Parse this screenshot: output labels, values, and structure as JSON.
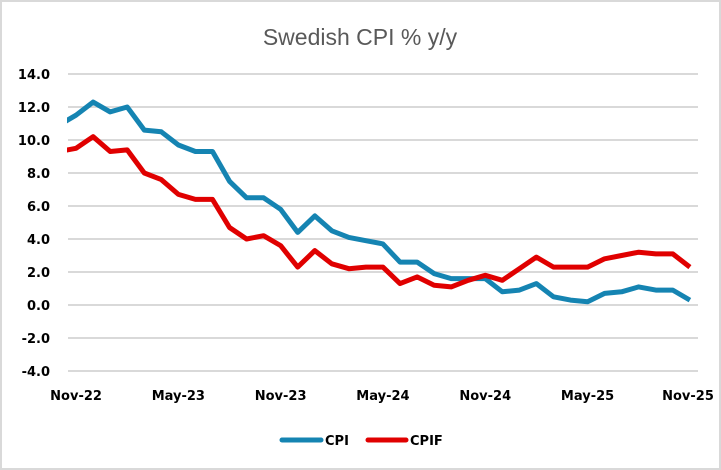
{
  "chart_data": {
    "type": "line",
    "title": "Swedish CPI % y/y",
    "xlabel": "",
    "ylabel": "",
    "ylim": [
      -4.0,
      14.0
    ],
    "yticks": [
      "14.0",
      "12.0",
      "10.0",
      "8.0",
      "6.0",
      "4.0",
      "2.0",
      "0.0",
      "-2.0",
      "-4.0"
    ],
    "ytick_values": [
      14,
      12,
      10,
      8,
      6,
      4,
      2,
      0,
      -2,
      -4
    ],
    "xtick_labels": [
      "Nov-22",
      "May-23",
      "Nov-23",
      "May-24",
      "Nov-24",
      "May-25",
      "Nov-25"
    ],
    "xtick_indices": [
      1,
      7,
      13,
      19,
      25,
      31,
      37
    ],
    "grid": true,
    "legend_position": "bottom",
    "x": [
      "Oct-22",
      "Nov-22",
      "Dec-22",
      "Jan-23",
      "Feb-23",
      "Mar-23",
      "Apr-23",
      "May-23",
      "Jun-23",
      "Jul-23",
      "Aug-23",
      "Sep-23",
      "Oct-23",
      "Nov-23",
      "Dec-23",
      "Jan-24",
      "Feb-24",
      "Mar-24",
      "Apr-24",
      "May-24",
      "Jun-24",
      "Jul-24",
      "Aug-24",
      "Sep-24",
      "Oct-24",
      "Nov-24",
      "Dec-24",
      "Jan-25",
      "Feb-25",
      "Mar-25",
      "Apr-25",
      "May-25",
      "Jun-25",
      "Jul-25",
      "Aug-25",
      "Sep-25",
      "Oct-25",
      "Nov-25"
    ],
    "series": [
      {
        "name": "CPI",
        "color": "#1584b2",
        "values": [
          10.9,
          11.5,
          12.3,
          11.7,
          12.0,
          10.6,
          10.5,
          9.7,
          9.3,
          9.3,
          7.5,
          6.5,
          6.5,
          5.8,
          4.4,
          5.4,
          4.5,
          4.1,
          3.9,
          3.7,
          2.6,
          2.6,
          1.9,
          1.6,
          1.6,
          1.6,
          0.8,
          0.9,
          1.3,
          0.5,
          0.3,
          0.2,
          0.7,
          0.8,
          1.1,
          0.9,
          0.9,
          0.3
        ]
      },
      {
        "name": "CPIF",
        "color": "#e00000",
        "values": [
          9.3,
          9.5,
          10.2,
          9.3,
          9.4,
          8.0,
          7.6,
          6.7,
          6.4,
          6.4,
          4.7,
          4.0,
          4.2,
          3.6,
          2.3,
          3.3,
          2.5,
          2.2,
          2.3,
          2.3,
          1.3,
          1.7,
          1.2,
          1.1,
          1.5,
          1.8,
          1.5,
          2.2,
          2.9,
          2.3,
          2.3,
          2.3,
          2.8,
          3.0,
          3.2,
          3.1,
          3.1,
          2.3
        ]
      }
    ]
  }
}
